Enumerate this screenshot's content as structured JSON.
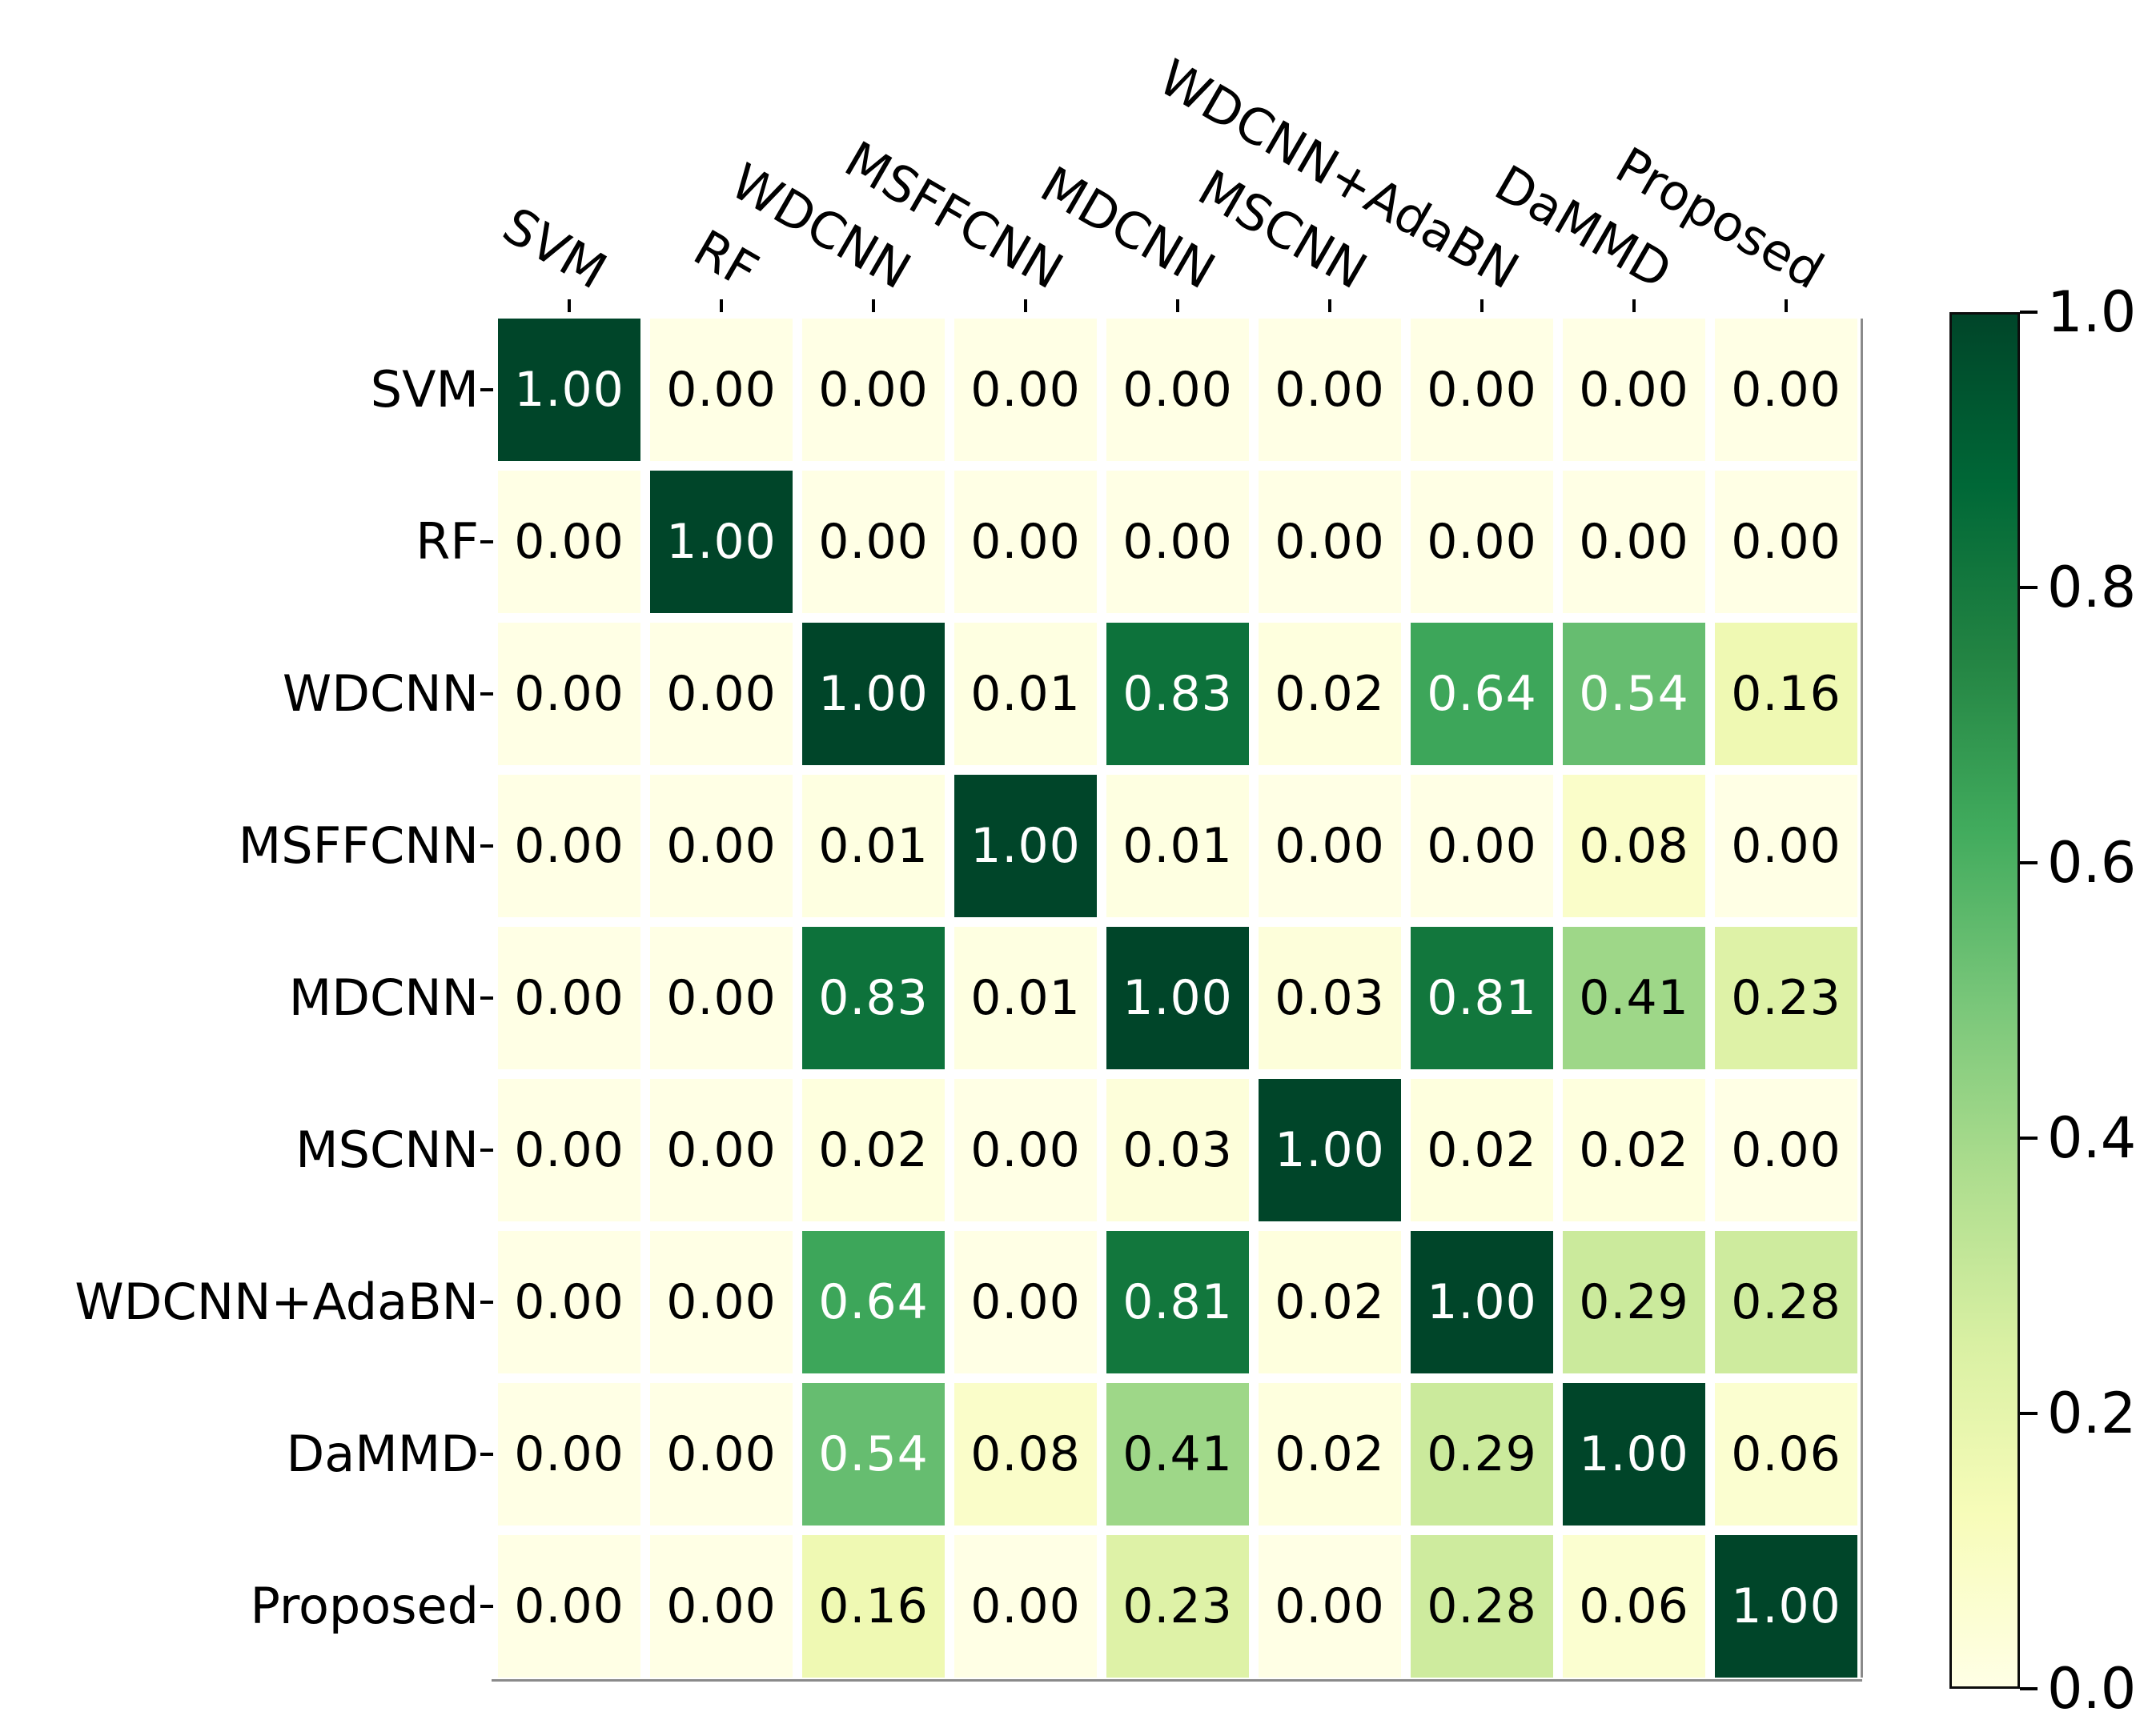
{
  "chart_data": {
    "type": "heatmap",
    "title": "",
    "xlabel": "",
    "ylabel": "",
    "x_categories": [
      "SVM",
      "RF",
      "WDCNN",
      "MSFFCNN",
      "MDCNN",
      "MSCNN",
      "WDCNN+AdaBN",
      "DaMMD",
      "Proposed"
    ],
    "y_categories": [
      "SVM",
      "RF",
      "WDCNN",
      "MSFFCNN",
      "MDCNN",
      "MSCNN",
      "WDCNN+AdaBN",
      "DaMMD",
      "Proposed"
    ],
    "matrix": [
      [
        1.0,
        0.0,
        0.0,
        0.0,
        0.0,
        0.0,
        0.0,
        0.0,
        0.0
      ],
      [
        0.0,
        1.0,
        0.0,
        0.0,
        0.0,
        0.0,
        0.0,
        0.0,
        0.0
      ],
      [
        0.0,
        0.0,
        1.0,
        0.01,
        0.83,
        0.02,
        0.64,
        0.54,
        0.16
      ],
      [
        0.0,
        0.0,
        0.01,
        1.0,
        0.01,
        0.0,
        0.0,
        0.08,
        0.0
      ],
      [
        0.0,
        0.0,
        0.83,
        0.01,
        1.0,
        0.03,
        0.81,
        0.41,
        0.23
      ],
      [
        0.0,
        0.0,
        0.02,
        0.0,
        0.03,
        1.0,
        0.02,
        0.02,
        0.0
      ],
      [
        0.0,
        0.0,
        0.64,
        0.0,
        0.81,
        0.02,
        1.0,
        0.29,
        0.28
      ],
      [
        0.0,
        0.0,
        0.54,
        0.08,
        0.41,
        0.02,
        0.29,
        1.0,
        0.06
      ],
      [
        0.0,
        0.0,
        0.16,
        0.0,
        0.23,
        0.0,
        0.28,
        0.06,
        1.0
      ]
    ],
    "value_decimals": 2,
    "value_range": [
      0.0,
      1.0
    ],
    "grid": false,
    "legend_position": "right-colorbar",
    "colormap": {
      "name": "YlGn",
      "stops": [
        {
          "v": 0.0,
          "c": "#ffffe5"
        },
        {
          "v": 0.125,
          "c": "#f7fcb9"
        },
        {
          "v": 0.25,
          "c": "#d9f0a3"
        },
        {
          "v": 0.375,
          "c": "#addd8e"
        },
        {
          "v": 0.5,
          "c": "#78c679"
        },
        {
          "v": 0.625,
          "c": "#41ab5d"
        },
        {
          "v": 0.75,
          "c": "#238443"
        },
        {
          "v": 0.875,
          "c": "#006837"
        },
        {
          "v": 1.0,
          "c": "#004529"
        }
      ]
    },
    "colorbar": {
      "min": 0.0,
      "max": 1.0,
      "ticks": [
        {
          "v": 1.0,
          "label": "1.0"
        },
        {
          "v": 0.8,
          "label": "0.8"
        },
        {
          "v": 0.6,
          "label": "0.6"
        },
        {
          "v": 0.4,
          "label": "0.4"
        },
        {
          "v": 0.2,
          "label": "0.2"
        },
        {
          "v": 0.0,
          "label": "0.0"
        }
      ]
    },
    "annotation_text_colors": {
      "dark_cell_text": "#ffffff",
      "light_cell_text": "#000000"
    },
    "annotation_white_text_threshold": 0.5,
    "tick_color": "#000000",
    "background_color": "#ffffff"
  }
}
